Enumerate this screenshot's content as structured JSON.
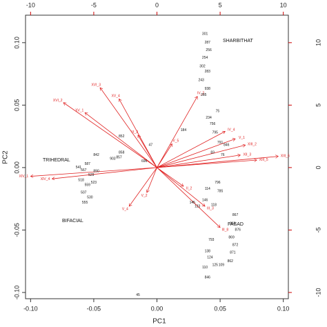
{
  "chart_data": {
    "type": "biplot",
    "xlabel": "PC1",
    "ylabel": "PC2",
    "xlim": [
      -0.104,
      0.104
    ],
    "ylim": [
      -0.105,
      0.122
    ],
    "xticks": [
      {
        "value": -0.1,
        "label": "-0.10"
      },
      {
        "value": -0.05,
        "label": "-0.05"
      },
      {
        "value": 0,
        "label": "0.00"
      },
      {
        "value": 0.05,
        "label": "0.05"
      },
      {
        "value": 0.1,
        "label": "0.10"
      }
    ],
    "yticks": [
      {
        "value": -0.1,
        "label": "-0.10"
      },
      {
        "value": -0.05,
        "label": "-0.05"
      },
      {
        "value": 0,
        "label": "0.00"
      },
      {
        "value": 0.05,
        "label": "0.05"
      },
      {
        "value": 0.1,
        "label": "0.10"
      }
    ],
    "x2lim": [
      -10.4,
      10.4
    ],
    "y2lim": [
      -10.5,
      12.2
    ],
    "x2ticks": [
      -10,
      -5,
      0,
      5,
      10
    ],
    "y2ticks": [
      -10,
      -5,
      0,
      5,
      10
    ],
    "annotations": [
      "SHARBITHAT",
      "TRIHEDRAL",
      "BIFACIAL",
      "FASAD"
    ],
    "points": {
      "color": "#111111",
      "x": [
        0.038,
        0.04,
        0.041,
        0.038,
        0.036,
        0.04,
        0.035,
        0.04,
        0.037,
        0.041,
        0.048,
        0.044,
        0.046,
        0.05,
        0.055,
        0.044,
        0.052,
        0.021,
        -0.028,
        -0.028,
        -0.01,
        -0.005,
        -0.03,
        -0.048,
        -0.035,
        -0.055,
        -0.058,
        -0.052,
        -0.06,
        -0.055,
        -0.058,
        -0.053,
        -0.05,
        -0.062,
        -0.057,
        -0.048,
        0.04,
        0.048,
        0.05,
        0.028,
        0.032,
        0.038,
        0.045,
        0.062,
        0.06,
        0.064,
        0.059,
        0.062,
        0.06,
        0.058,
        0.04,
        0.042,
        0.038,
        0.046,
        0.04,
        0.051,
        0.043,
        -0.015
      ],
      "y": [
        0.107,
        0.1,
        0.094,
        0.088,
        0.081,
        0.077,
        0.07,
        0.063,
        0.058,
        0.04,
        0.045,
        0.035,
        0.028,
        0.02,
        0.018,
        0.012,
        0.01,
        0.03,
        0.025,
        0.012,
        0.005,
        0.018,
        0.008,
        0.01,
        0.007,
        0.003,
        -0.002,
        -0.006,
        -0.01,
        -0.014,
        -0.02,
        -0.024,
        -0.012,
        0.0,
        -0.028,
        -0.003,
        -0.017,
        -0.012,
        -0.019,
        -0.028,
        -0.031,
        -0.026,
        -0.03,
        -0.038,
        -0.045,
        -0.05,
        -0.056,
        -0.062,
        -0.068,
        -0.075,
        -0.067,
        -0.072,
        -0.08,
        -0.078,
        -0.088,
        -0.078,
        -0.058,
        -0.102
      ],
      "labels": [
        "301",
        "287",
        "256",
        "254",
        "302",
        "283",
        "243",
        "938",
        "285",
        "234",
        "75",
        "756",
        "795",
        "791",
        "846",
        "83",
        "76",
        "184",
        "852",
        "858",
        "696",
        "47",
        "857",
        "842",
        "903",
        "587",
        "567",
        "529",
        "518",
        "559",
        "507",
        "530",
        "523",
        "541",
        "555",
        "890",
        "114",
        "796",
        "785",
        "145",
        "123",
        "146",
        "118",
        "867",
        "863",
        "876",
        "869",
        "872",
        "871",
        "862",
        "138",
        "124",
        "110",
        "125",
        "846",
        "109",
        "793",
        "45"
      ]
    },
    "arrows": {
      "color": "#e02020",
      "x": [
        -7.4,
        -4.5,
        -5.7,
        -3.0,
        3.2,
        5.4,
        6.2,
        7.9,
        7.0,
        6.6,
        -10.0,
        -8.3,
        -2.2,
        -0.8,
        5.0,
        3.8,
        2.1,
        9.6,
        -1.5,
        1.2
      ],
      "y": [
        5.2,
        6.4,
        4.4,
        5.5,
        5.7,
        2.9,
        2.3,
        0.6,
        1.8,
        1.0,
        -0.7,
        -0.9,
        -3.1,
        -2.0,
        -4.8,
        -3.1,
        -1.5,
        0.9,
        2.6,
        1.9
      ],
      "labels": [
        "XVI_2",
        "XVI_3",
        "XV_1",
        "XV_4",
        "IV_2",
        "IV_4",
        "V_1",
        "XIII_5",
        "XIII_2",
        "XII_3",
        "XIV_1",
        "XIV_4",
        "V_4",
        "V_2",
        "III_8",
        "III_3",
        "II_2",
        "XIII_6",
        "VI_2",
        "V_5"
      ]
    }
  }
}
